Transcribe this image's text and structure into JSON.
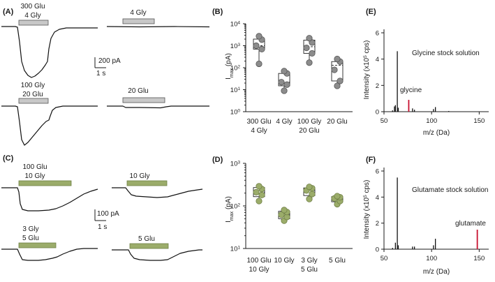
{
  "panels": {
    "A": {
      "label": "(A)",
      "stim": [
        {
          "line1": "300 Glu",
          "line2": "4 Gly"
        },
        {
          "line1": "4 Gly",
          "line2": ""
        },
        {
          "line1": "100 Gly",
          "line2": "20 Glu"
        },
        {
          "line1": "20 Glu",
          "line2": ""
        }
      ],
      "scale": {
        "current": "200 pA",
        "time": "1 s"
      }
    },
    "B": {
      "label": "(B)",
      "ylabel_main": "I",
      "ylabel_sub": "max",
      "ylabel_unit": "(pA)",
      "ytick_base": "10",
      "ytick_exps": [
        "0",
        "1",
        "2",
        "3",
        "4"
      ],
      "groups": [
        {
          "line1": "300 Glu",
          "line2": "4 Gly"
        },
        {
          "line1": "4 Gly",
          "line2": ""
        },
        {
          "line1": "100 Gly",
          "line2": "20 Glu"
        },
        {
          "line1": "20 Glu",
          "line2": ""
        }
      ]
    },
    "C": {
      "label": "(C)",
      "stim": [
        {
          "line1": "100 Glu",
          "line2": "10 Gly"
        },
        {
          "line1": "10 Gly",
          "line2": ""
        },
        {
          "line1": "3 Gly",
          "line2": "5 Glu"
        },
        {
          "line1": "5 Glu",
          "line2": ""
        }
      ],
      "scale": {
        "current": "100 pA",
        "time": "1 s"
      }
    },
    "D": {
      "label": "(D)",
      "ylabel_main": "I",
      "ylabel_sub": "max",
      "ylabel_unit": "(pA)",
      "ytick_base": "10",
      "ytick_exps": [
        "1",
        "2",
        "3"
      ],
      "groups": [
        {
          "line1": "100 Glu",
          "line2": "10 Gly"
        },
        {
          "line1": "10 Gly",
          "line2": ""
        },
        {
          "line1": "3 Gly",
          "line2": "5 Glu"
        },
        {
          "line1": "5 Glu",
          "line2": ""
        }
      ]
    },
    "E": {
      "label": "(E)",
      "title": "Glycine stock solution",
      "peak_label": "glycine",
      "ylabel": "Intensity (x10",
      "ylabel_exp": "5",
      "ylabel_end": " cps)",
      "xlabel": "m/z (Da)",
      "yticks": [
        "0",
        "2",
        "4",
        "6"
      ],
      "xticks": [
        "50",
        "100",
        "150"
      ]
    },
    "F": {
      "label": "(F)",
      "title": "Glutamate stock solution",
      "peak_label": "glutamate",
      "ylabel": "Intensity (x10",
      "ylabel_exp": "5",
      "ylabel_end": " cps)",
      "xlabel": "m/z (Da)",
      "yticks": [
        "0",
        "2",
        "4",
        "6"
      ],
      "xticks": [
        "50",
        "100",
        "150"
      ]
    }
  },
  "chart_data": [
    {
      "type": "box",
      "panel": "B",
      "title": "",
      "ylabel": "Imax (pA)",
      "yscale": "log",
      "ylim": [
        1,
        10000
      ],
      "color": "#8c8c8c",
      "categories": [
        "300 Glu / 4 Gly",
        "4 Gly",
        "100 Gly / 20 Glu",
        "20 Glu"
      ],
      "boxes": [
        {
          "min": 150,
          "q1": 700,
          "median": 1000,
          "q3": 2000,
          "max": 2800
        },
        {
          "min": 9,
          "q1": 15,
          "median": 22,
          "q3": 55,
          "max": 70
        },
        {
          "min": 170,
          "q1": 450,
          "median": 900,
          "q3": 1800,
          "max": 2300
        },
        {
          "min": 15,
          "q1": 25,
          "median": 130,
          "q3": 190,
          "max": 260
        }
      ],
      "points": [
        [
          150,
          700,
          1000,
          1900,
          2700
        ],
        [
          9,
          17,
          22,
          55,
          70
        ],
        [
          170,
          450,
          800,
          1400,
          2200
        ],
        [
          15,
          25,
          80,
          190,
          250
        ]
      ]
    },
    {
      "type": "box",
      "panel": "D",
      "title": "",
      "ylabel": "Imax (pA)",
      "yscale": "log",
      "ylim": [
        10,
        1000
      ],
      "color": "#9bac6a",
      "categories": [
        "100 Glu / 10 Gly",
        "10 Gly",
        "3 Gly / 5 Glu",
        "5 Glu"
      ],
      "boxes": [
        {
          "min": 130,
          "q1": 165,
          "median": 210,
          "q3": 270,
          "max": 290
        },
        {
          "min": 45,
          "q1": 50,
          "median": 62,
          "q3": 75,
          "max": 80
        },
        {
          "min": 145,
          "q1": 175,
          "median": 230,
          "q3": 265,
          "max": 280
        },
        {
          "min": 110,
          "q1": 125,
          "median": 150,
          "q3": 165,
          "max": 170
        }
      ],
      "points": [
        [
          130,
          180,
          210,
          250,
          290
        ],
        [
          45,
          55,
          62,
          72,
          80
        ],
        [
          145,
          190,
          230,
          260,
          280
        ],
        [
          110,
          130,
          150,
          160,
          170
        ]
      ]
    },
    {
      "type": "bar",
      "panel": "E",
      "title": "Glycine stock solution",
      "xlabel": "m/z (Da)",
      "ylabel": "Intensity (x10^5 cps)",
      "xlim": [
        50,
        160
      ],
      "ylim": [
        0,
        6
      ],
      "peaks": [
        {
          "x": 59,
          "y": 0.1,
          "highlight": false
        },
        {
          "x": 61,
          "y": 0.4,
          "highlight": false
        },
        {
          "x": 62,
          "y": 0.5,
          "highlight": false
        },
        {
          "x": 64,
          "y": 4.6,
          "highlight": false
        },
        {
          "x": 65,
          "y": 0.3,
          "highlight": false
        },
        {
          "x": 76,
          "y": 0.9,
          "highlight": true
        },
        {
          "x": 80,
          "y": 0.25,
          "highlight": false
        },
        {
          "x": 82,
          "y": 0.15,
          "highlight": false
        },
        {
          "x": 102,
          "y": 0.2,
          "highlight": false
        },
        {
          "x": 104,
          "y": 0.35,
          "highlight": false
        },
        {
          "x": 118,
          "y": 0.05,
          "highlight": false
        }
      ]
    },
    {
      "type": "bar",
      "panel": "F",
      "title": "Glutamate stock solution",
      "xlabel": "m/z (Da)",
      "ylabel": "Intensity (x10^5 cps)",
      "xlim": [
        50,
        160
      ],
      "ylim": [
        0,
        6
      ],
      "peaks": [
        {
          "x": 59,
          "y": 0.1,
          "highlight": false
        },
        {
          "x": 62,
          "y": 0.5,
          "highlight": false
        },
        {
          "x": 64,
          "y": 5.5,
          "highlight": false
        },
        {
          "x": 65,
          "y": 0.3,
          "highlight": false
        },
        {
          "x": 80,
          "y": 0.2,
          "highlight": false
        },
        {
          "x": 82,
          "y": 0.2,
          "highlight": false
        },
        {
          "x": 102,
          "y": 0.3,
          "highlight": false
        },
        {
          "x": 104,
          "y": 0.8,
          "highlight": false
        },
        {
          "x": 148,
          "y": 1.5,
          "highlight": true
        }
      ]
    }
  ]
}
